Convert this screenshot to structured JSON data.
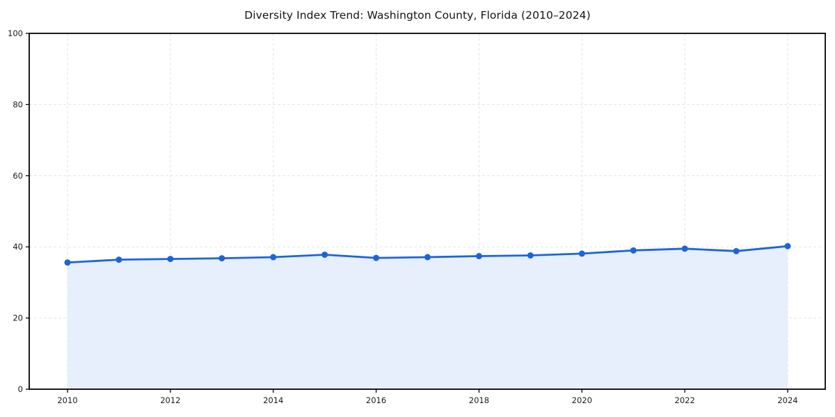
{
  "title": "Diversity Index Trend: Washington County, Florida (2010–2024)",
  "chart_data": {
    "type": "line",
    "title": "Diversity Index Trend: Washington County, Florida (2010–2024)",
    "x": [
      2010,
      2011,
      2012,
      2013,
      2014,
      2015,
      2016,
      2017,
      2018,
      2019,
      2020,
      2021,
      2022,
      2023,
      2024
    ],
    "series": [
      {
        "name": "Diversity Index",
        "values": [
          35.6,
          36.4,
          36.6,
          36.8,
          37.1,
          37.8,
          36.9,
          37.1,
          37.4,
          37.6,
          38.1,
          39.0,
          39.5,
          38.8,
          40.2
        ]
      }
    ],
    "xticks": [
      2010,
      2012,
      2014,
      2016,
      2018,
      2020,
      2022,
      2024
    ],
    "yticks": [
      0,
      20,
      40,
      60,
      80,
      100
    ],
    "ylim": [
      0,
      100
    ],
    "xlabel": "",
    "ylabel": "",
    "grid": true,
    "grid_style": "dashed",
    "legend": false,
    "area_fill": true,
    "marker": "circle",
    "colors": {
      "line": "#1c64dc",
      "marker": "#1c64dc",
      "fill": "#e6effb",
      "grid": "#e4e4e4",
      "spine": "#000000",
      "text": "#1a1a1a",
      "background": "#ffffff"
    }
  }
}
